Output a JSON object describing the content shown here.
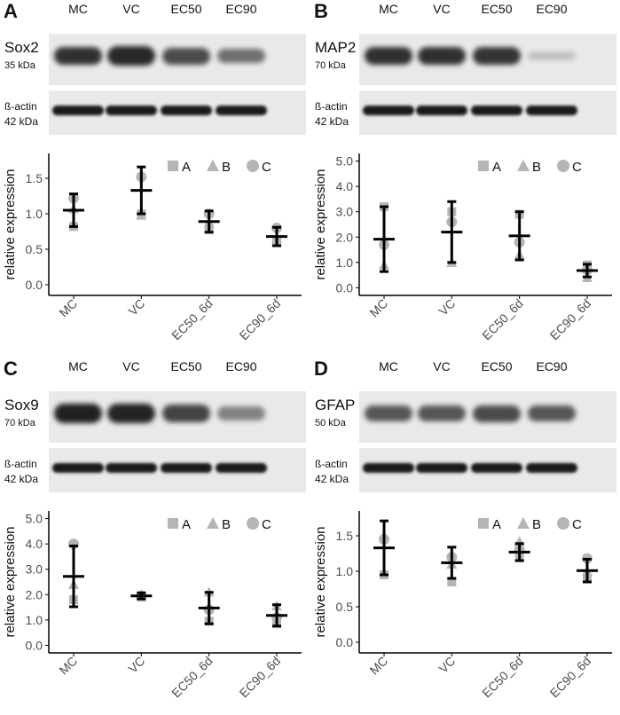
{
  "lanes": [
    "MC",
    "VC",
    "EC50",
    "EC90"
  ],
  "legend": [
    {
      "label": "A",
      "shape": "square"
    },
    {
      "label": "B",
      "shape": "triangle"
    },
    {
      "label": "C",
      "shape": "circle"
    }
  ],
  "colors": {
    "marker": "#b5b5b5",
    "errorbar": "#000000",
    "axis": "#000000",
    "tick_text": "#4d4d4d",
    "blot_bg": "#e9e9e9",
    "band": "#1a1a1a"
  },
  "panels": [
    {
      "letter": "A",
      "protein": "Sox2",
      "protein_kda": "35 kDa",
      "actin": "ß-actin",
      "actin_kda": "42 kDa",
      "band_strength": [
        0.9,
        0.95,
        0.75,
        0.55
      ],
      "chart_data": {
        "type": "scatter",
        "ylabel": "relative expression",
        "categories": [
          "MC",
          "VC",
          "EC50_6d",
          "EC90_6d"
        ],
        "yticks": [
          "0.0",
          "0.5",
          "1.0",
          "1.5"
        ],
        "ylim": [
          -0.15,
          1.85
        ],
        "mean": [
          1.05,
          1.33,
          0.89,
          0.68
        ],
        "sd": [
          0.23,
          0.33,
          0.15,
          0.13
        ],
        "points": [
          {
            "A": 0.82,
            "B": 1.07,
            "C": 1.22
          },
          {
            "A": 1.0,
            "B": 0.98,
            "C": 1.52
          },
          {
            "A": 0.78,
            "B": 0.88,
            "C": 1.0
          },
          {
            "A": 0.6,
            "B": 0.65,
            "C": 0.8
          }
        ]
      }
    },
    {
      "letter": "B",
      "protein": "MAP2",
      "protein_kda": "70 kDa",
      "actin": "ß-actin",
      "actin_kda": "42 kDa",
      "band_strength": [
        0.9,
        0.9,
        0.88,
        0.08
      ],
      "chart_data": {
        "type": "scatter",
        "ylabel": "relative expression",
        "categories": [
          "MC",
          "VC",
          "EC50_6d",
          "EC90_6d"
        ],
        "yticks": [
          "0.0",
          "1.0",
          "2.0",
          "3.0",
          "4.0",
          "5.0"
        ],
        "ylim": [
          -0.3,
          5.3
        ],
        "mean": [
          1.92,
          2.2,
          2.05,
          0.68
        ],
        "sd": [
          1.28,
          1.2,
          0.95,
          0.25
        ],
        "points": [
          {
            "A": 3.2,
            "B": 0.9,
            "C": 1.7
          },
          {
            "A": 3.0,
            "B": 1.0,
            "C": 2.6
          },
          {
            "A": 2.9,
            "B": 1.3,
            "C": 1.8
          },
          {
            "A": 0.9,
            "B": 0.4,
            "C": 0.7
          }
        ]
      }
    },
    {
      "letter": "C",
      "protein": "Sox9",
      "protein_kda": "70 kDa",
      "actin": "ß-actin",
      "actin_kda": "42 kDa",
      "band_strength": [
        1.0,
        0.98,
        0.8,
        0.45
      ],
      "chart_data": {
        "type": "scatter",
        "ylabel": "relative expression",
        "categories": [
          "MC",
          "VC",
          "EC50_6d",
          "EC90_6d"
        ],
        "yticks": [
          "0.0",
          "1.0",
          "2.0",
          "3.0",
          "4.0",
          "5.0"
        ],
        "ylim": [
          -0.3,
          5.3
        ],
        "mean": [
          2.72,
          1.95,
          1.47,
          1.18
        ],
        "sd": [
          1.2,
          0.12,
          0.62,
          0.42
        ],
        "points": [
          {
            "A": 1.8,
            "B": 2.4,
            "C": 4.0
          },
          {
            "A": 1.9,
            "B": 2.0,
            "C": 1.95
          },
          {
            "A": 0.95,
            "B": 2.1,
            "C": 1.4
          },
          {
            "A": 0.85,
            "B": 1.55,
            "C": 1.1
          }
        ]
      }
    },
    {
      "letter": "D",
      "protein": "GFAP",
      "protein_kda": "50 kDa",
      "actin": "ß-actin",
      "actin_kda": "42 kDa",
      "band_strength": [
        0.7,
        0.7,
        0.75,
        0.7
      ],
      "chart_data": {
        "type": "scatter",
        "ylabel": "relative expression",
        "categories": [
          "MC",
          "VC",
          "EC50_6d",
          "EC90_6d"
        ],
        "yticks": [
          "0.0",
          "0.5",
          "1.0",
          "1.5"
        ],
        "ylim": [
          -0.15,
          1.85
        ],
        "mean": [
          1.33,
          1.12,
          1.27,
          1.01
        ],
        "sd": [
          0.38,
          0.22,
          0.12,
          0.16
        ],
        "points": [
          {
            "A": 0.95,
            "B": 1.5,
            "C": 1.45
          },
          {
            "A": 0.85,
            "B": 1.1,
            "C": 1.2
          },
          {
            "A": 1.2,
            "B": 1.42,
            "C": 1.3
          },
          {
            "A": 0.9,
            "B": 1.0,
            "C": 1.18
          }
        ]
      }
    }
  ]
}
